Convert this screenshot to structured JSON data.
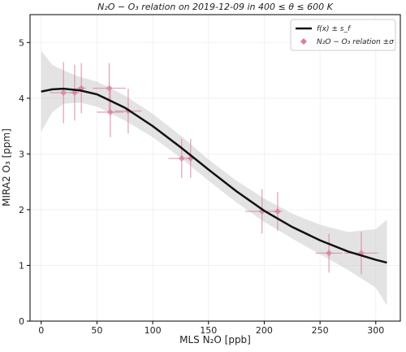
{
  "chart_data": {
    "type": "scatter",
    "title": "N₂O − O₃ relation on 2019-12-09 in 400 ≤ θ ≤ 600 K",
    "xlabel": "MLS N₂O [ppb]",
    "ylabel": "MIRA2 O₃ [ppm]",
    "xlim": [
      -10,
      322
    ],
    "ylim": [
      0,
      5.5
    ],
    "xticks": [
      0,
      50,
      100,
      150,
      200,
      250,
      300
    ],
    "yticks": [
      0,
      1,
      2,
      3,
      4,
      5
    ],
    "grid": true,
    "legend": "upper right",
    "fit": {
      "name": "f(x) ± s_f",
      "color": "#111111",
      "band_color": "#cccccc",
      "x": [
        0,
        10,
        20,
        35,
        50,
        75,
        100,
        125,
        150,
        175,
        200,
        225,
        250,
        275,
        300,
        310
      ],
      "values": [
        4.12,
        4.16,
        4.17,
        4.14,
        4.07,
        3.83,
        3.5,
        3.12,
        2.72,
        2.33,
        1.98,
        1.69,
        1.45,
        1.25,
        1.1,
        1.05
      ],
      "lower": [
        3.4,
        3.75,
        3.9,
        3.92,
        3.85,
        3.6,
        3.3,
        2.93,
        2.52,
        2.13,
        1.78,
        1.48,
        1.2,
        0.92,
        0.6,
        0.28
      ],
      "upper": [
        4.85,
        4.6,
        4.5,
        4.38,
        4.3,
        4.05,
        3.72,
        3.33,
        2.9,
        2.52,
        2.2,
        1.93,
        1.73,
        1.6,
        1.65,
        1.82
      ]
    },
    "series": [
      {
        "name": "N₂O − O₃ relation ±σ",
        "color": "#d9809a",
        "x": [
          20,
          30,
          36,
          61,
          62,
          78,
          126,
          134,
          198,
          212,
          258,
          287
        ],
        "values": [
          4.1,
          4.1,
          4.18,
          4.18,
          3.75,
          3.77,
          2.92,
          2.92,
          1.97,
          1.97,
          1.22,
          1.22
        ],
        "xerr": [
          12,
          4,
          4,
          15,
          12,
          12,
          12,
          4,
          15,
          4,
          12,
          15
        ],
        "yerr": [
          0.55,
          0.5,
          0.45,
          0.45,
          0.45,
          0.4,
          0.35,
          0.35,
          0.4,
          0.35,
          0.35,
          0.38
        ]
      }
    ]
  }
}
